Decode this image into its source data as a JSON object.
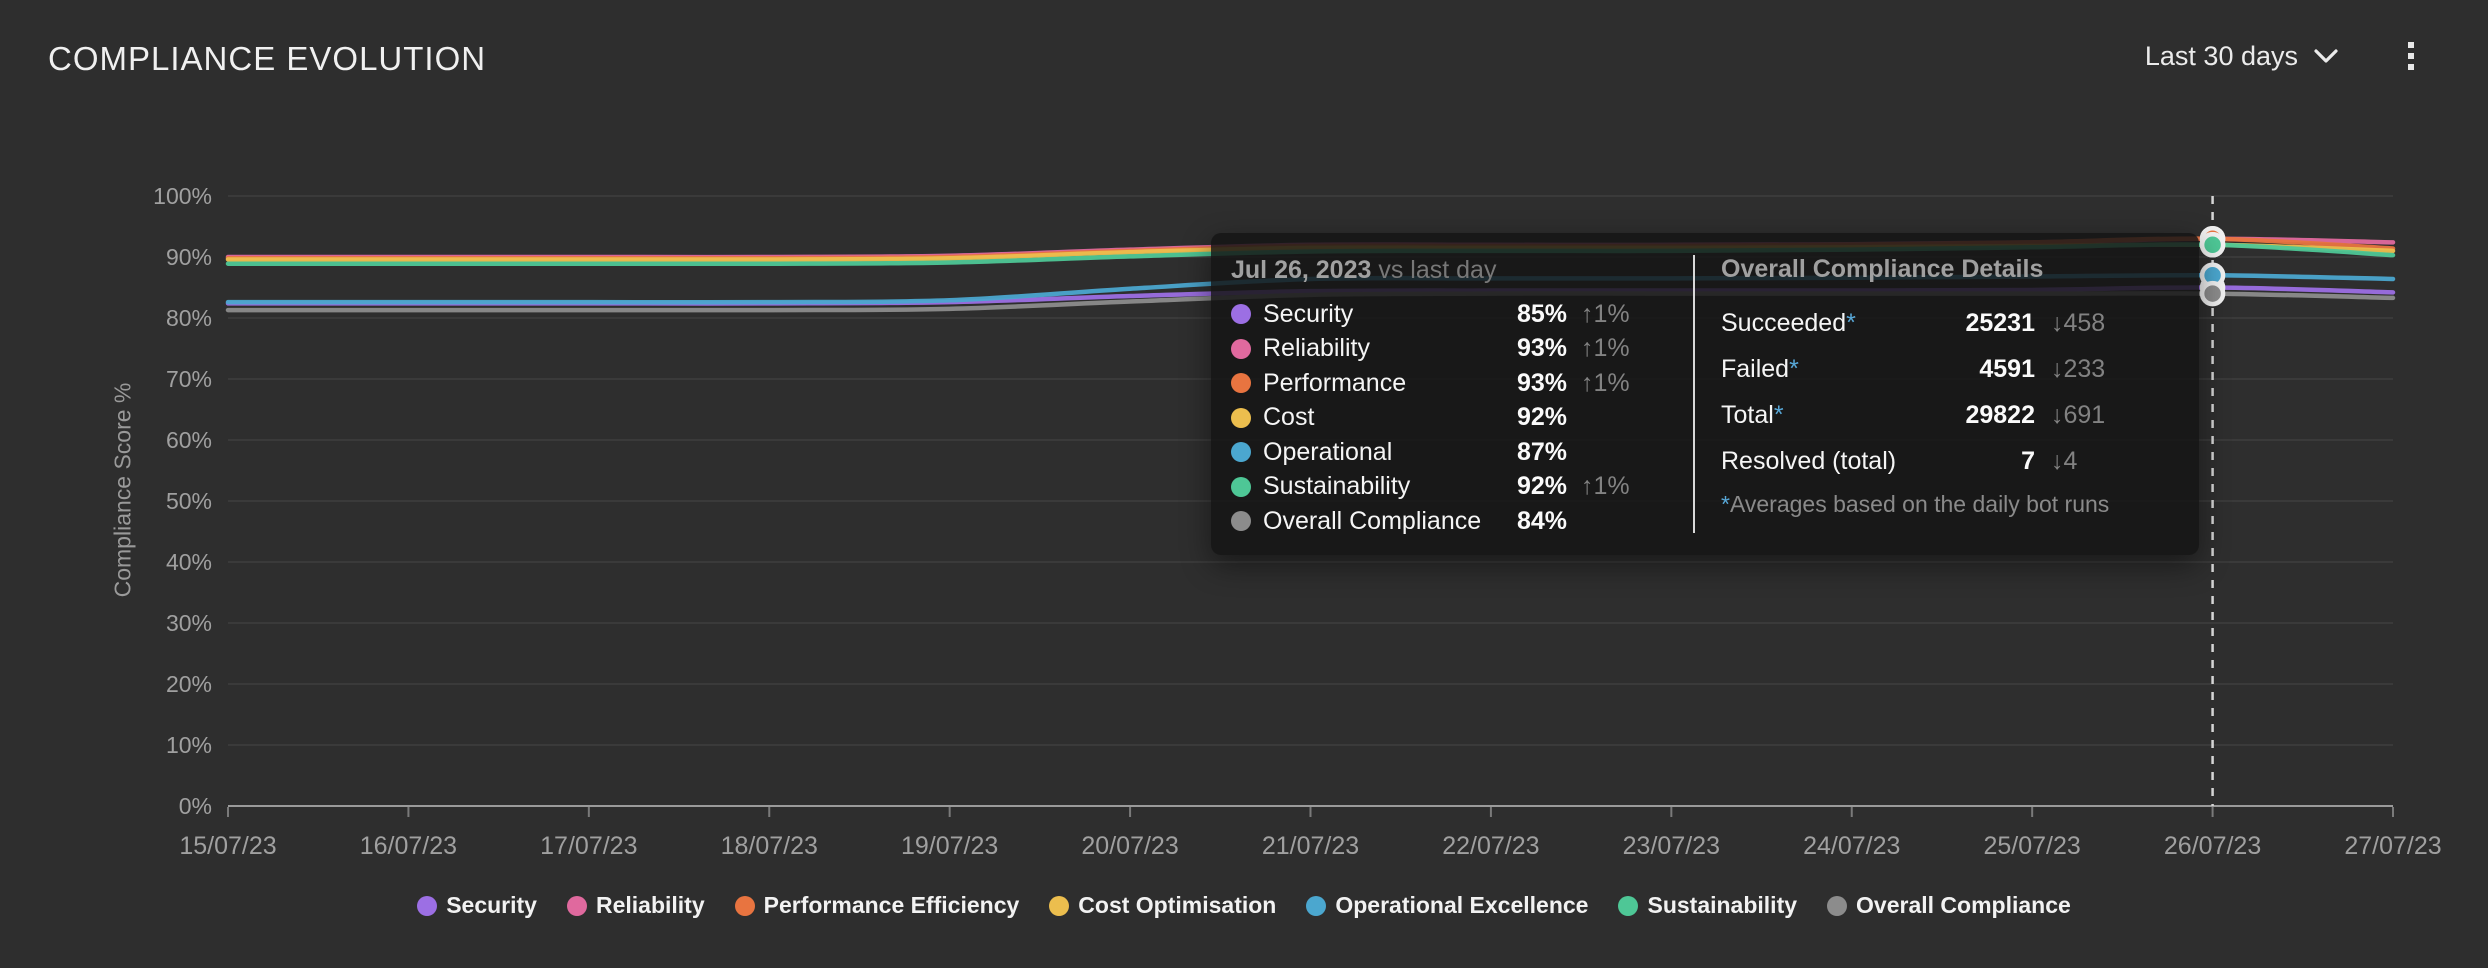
{
  "header": {
    "title": "COMPLIANCE EVOLUTION",
    "range_selector": "Last 30 days"
  },
  "chart_data": {
    "type": "line",
    "title": "COMPLIANCE EVOLUTION",
    "ylabel": "Compliance Score %",
    "ylim": [
      0,
      100
    ],
    "y_ticks": [
      100,
      90,
      80,
      70,
      60,
      50,
      40,
      30,
      20,
      10,
      0
    ],
    "y_tick_suffix": "%",
    "grid": "horizontal",
    "legend_position": "bottom",
    "x": [
      "15/07/23",
      "16/07/23",
      "17/07/23",
      "18/07/23",
      "19/07/23",
      "20/07/23",
      "21/07/23",
      "22/07/23",
      "23/07/23",
      "24/07/23",
      "25/07/23",
      "26/07/23",
      "27/07/23"
    ],
    "highlight_index": 11,
    "series": [
      {
        "name": "Security",
        "legend_label": "Security",
        "color": "#9c6fe4",
        "values": [
          82.4,
          82.4,
          82.4,
          82.4,
          82.6,
          83.6,
          84.4,
          84.5,
          84.5,
          84.5,
          84.6,
          85,
          84.2
        ]
      },
      {
        "name": "Reliability",
        "legend_label": "Reliability",
        "color": "#e0699e",
        "values": [
          90,
          90,
          90,
          90,
          90.2,
          91.2,
          92,
          92,
          92,
          92.1,
          92.4,
          93,
          92.4
        ]
      },
      {
        "name": "Performance",
        "legend_label": "Performance Efficiency",
        "color": "#e87440",
        "values": [
          89.8,
          89.8,
          89.8,
          89.8,
          90,
          91,
          91.8,
          91.8,
          91.8,
          92,
          92.4,
          93,
          91.4
        ]
      },
      {
        "name": "Cost",
        "legend_label": "Cost Optimisation",
        "color": "#ecbe4e",
        "values": [
          89.6,
          89.6,
          89.6,
          89.6,
          89.8,
          90.8,
          91.5,
          91.5,
          91.5,
          91.6,
          91.8,
          92,
          91
        ]
      },
      {
        "name": "Operational",
        "legend_label": "Operational Excellence",
        "color": "#4ba7cf",
        "values": [
          82.6,
          82.6,
          82.6,
          82.6,
          82.9,
          84.8,
          86.4,
          86.5,
          86.5,
          86.6,
          86.8,
          87,
          86.4
        ]
      },
      {
        "name": "Sustainability",
        "legend_label": "Sustainability",
        "color": "#4ec796",
        "values": [
          88.9,
          88.9,
          88.9,
          88.9,
          89.1,
          90.1,
          90.9,
          91,
          91,
          91.2,
          91.6,
          92,
          90.3
        ]
      },
      {
        "name": "Overall Compliance",
        "legend_label": "Overall Compliance",
        "color": "#8c8c8c",
        "values": [
          81.3,
          81.3,
          81.3,
          81.3,
          81.5,
          82.7,
          83.8,
          84,
          84,
          84,
          84,
          84,
          83.3
        ]
      }
    ]
  },
  "tooltip": {
    "date": "Jul 26, 2023",
    "compare_label": "vs last day",
    "rows": [
      {
        "label": "Security",
        "color": "#9c6fe4",
        "value": "85%",
        "delta": "↑1%"
      },
      {
        "label": "Reliability",
        "color": "#e0699e",
        "value": "93%",
        "delta": "↑1%"
      },
      {
        "label": "Performance",
        "color": "#e87440",
        "value": "93%",
        "delta": "↑1%"
      },
      {
        "label": "Cost",
        "color": "#ecbe4e",
        "value": "92%",
        "delta": ""
      },
      {
        "label": "Operational",
        "color": "#4ba7cf",
        "value": "87%",
        "delta": ""
      },
      {
        "label": "Sustainability",
        "color": "#4ec796",
        "value": "92%",
        "delta": "↑1%"
      },
      {
        "label": "Overall Compliance",
        "color": "#8c8c8c",
        "value": "84%",
        "delta": ""
      }
    ],
    "details": {
      "title": "Overall Compliance Details",
      "rows": [
        {
          "label": "Succeeded",
          "star": "*",
          "value": "25231",
          "delta": "↓458"
        },
        {
          "label": "Failed",
          "star": "*",
          "value": "4591",
          "delta": "↓233"
        },
        {
          "label": "Total",
          "star": "*",
          "value": "29822",
          "delta": "↓691"
        },
        {
          "label": "Resolved (total)",
          "star": "",
          "value": "7",
          "delta": "↓4"
        }
      ],
      "footnote_star": "*",
      "footnote_text": "Averages based on the daily bot runs"
    }
  }
}
